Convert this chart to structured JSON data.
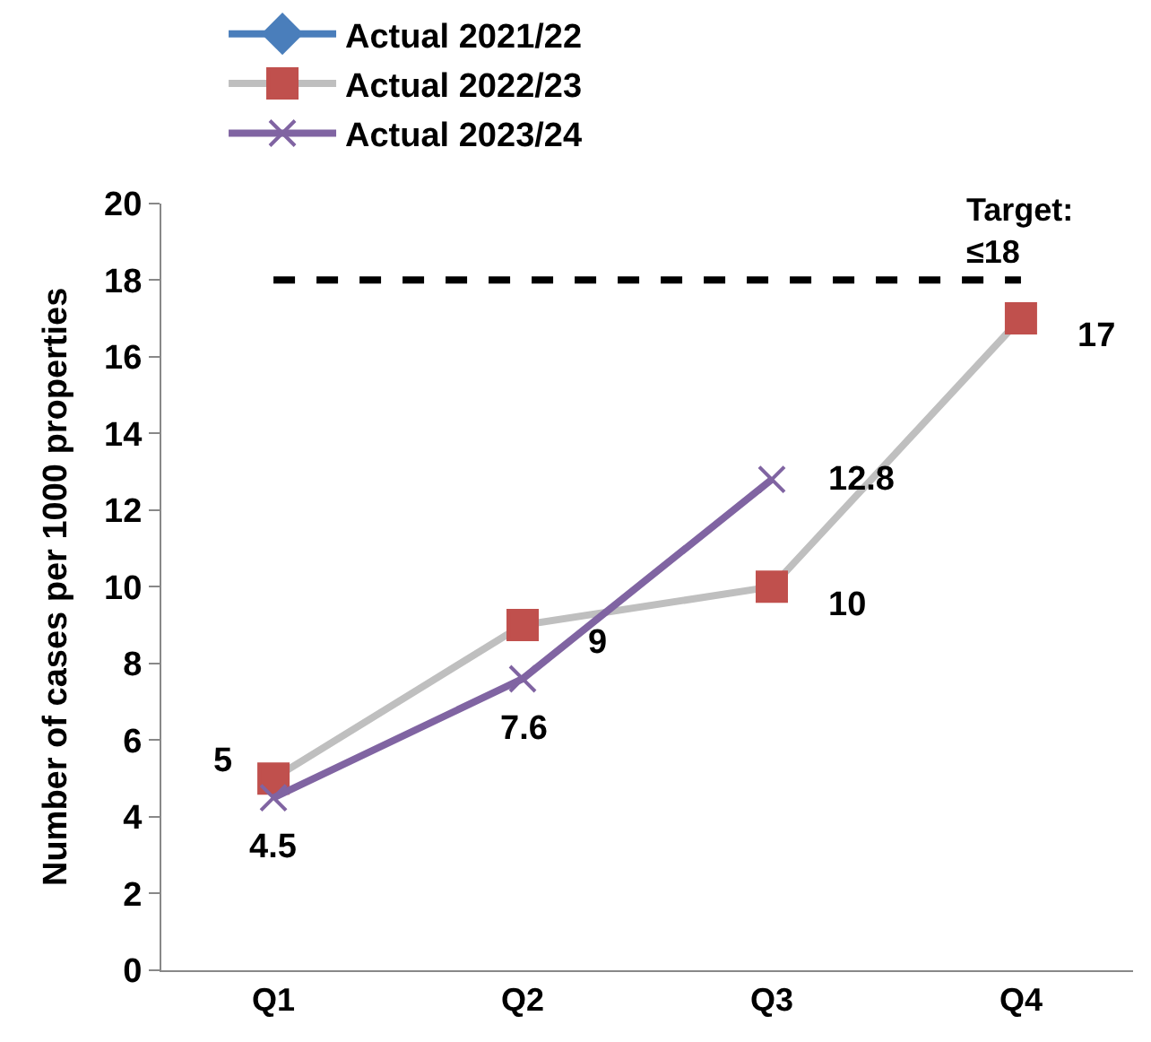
{
  "chart_data": {
    "type": "line",
    "ylabel": "Number of cases per 1000 properties",
    "categories": [
      "Q1",
      "Q2",
      "Q3",
      "Q4"
    ],
    "series": [
      {
        "name": "Actual 2021/22",
        "color": "#4a7ebb",
        "marker": "diamond",
        "values": [
          null,
          null,
          null,
          null
        ]
      },
      {
        "name": "Actual 2022/23",
        "color": "#bfbfbf",
        "colors": [
          "#c0504d",
          "#c0504d",
          "#c0504d",
          "#c0504d"
        ],
        "marker": "square",
        "values": [
          5,
          9,
          10,
          17
        ]
      },
      {
        "name": "Actual 2023/24",
        "color": "#8064a2",
        "marker": "cross",
        "values": [
          4.5,
          7.6,
          12.8,
          null
        ]
      }
    ],
    "ylim": [
      0,
      20
    ],
    "yticks": [
      0,
      2,
      4,
      6,
      8,
      10,
      12,
      14,
      16,
      18,
      20
    ],
    "ref_lines": [
      {
        "axis": "y",
        "value": 18,
        "label": "Target:\n≤18",
        "color": "#000000",
        "line_style": "dashed"
      }
    ],
    "data_labels": true,
    "legend": "top left"
  }
}
